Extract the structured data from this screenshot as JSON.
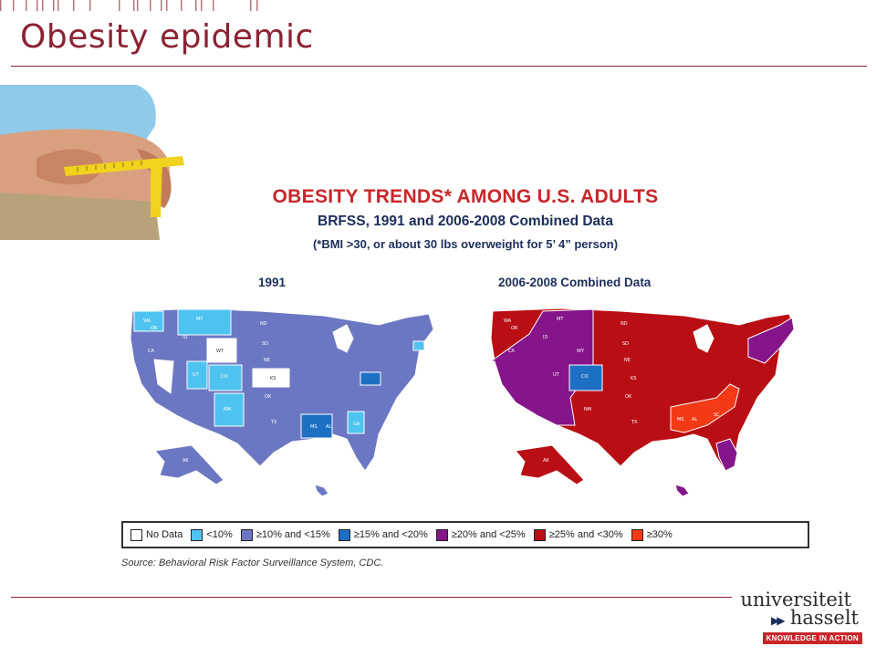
{
  "slide": {
    "title": "Obesity epidemic"
  },
  "figure": {
    "title": "OBESITY TRENDS* AMONG U.S. ADULTS",
    "subtitle": "BRFSS, 1991 and 2006-2008 Combined Data",
    "note": "(*BMI >30, or about 30 lbs overweight for 5’ 4” person)",
    "map_left_label": "1991",
    "map_right_label": "2006-2008 Combined Data",
    "legend": [
      {
        "label": "No Data",
        "color": "#ffffff"
      },
      {
        "label": "<10%",
        "color": "#4fc3f0"
      },
      {
        "label": "≥10% and <15%",
        "color": "#6b77c2"
      },
      {
        "label": "≥15% and <20%",
        "color": "#1d6fc4"
      },
      {
        "label": "≥20% and <25%",
        "color": "#86148a"
      },
      {
        "label": "≥25% and <30%",
        "color": "#b90f14"
      },
      {
        "label": "≥30%",
        "color": "#f23a17"
      }
    ],
    "source": "Source: Behavioral Risk Factor Surveillance System, CDC."
  },
  "logo": {
    "line1": "universiteit",
    "line2": "hasselt",
    "tagline": "KNOWLEDGE IN ACTION"
  }
}
